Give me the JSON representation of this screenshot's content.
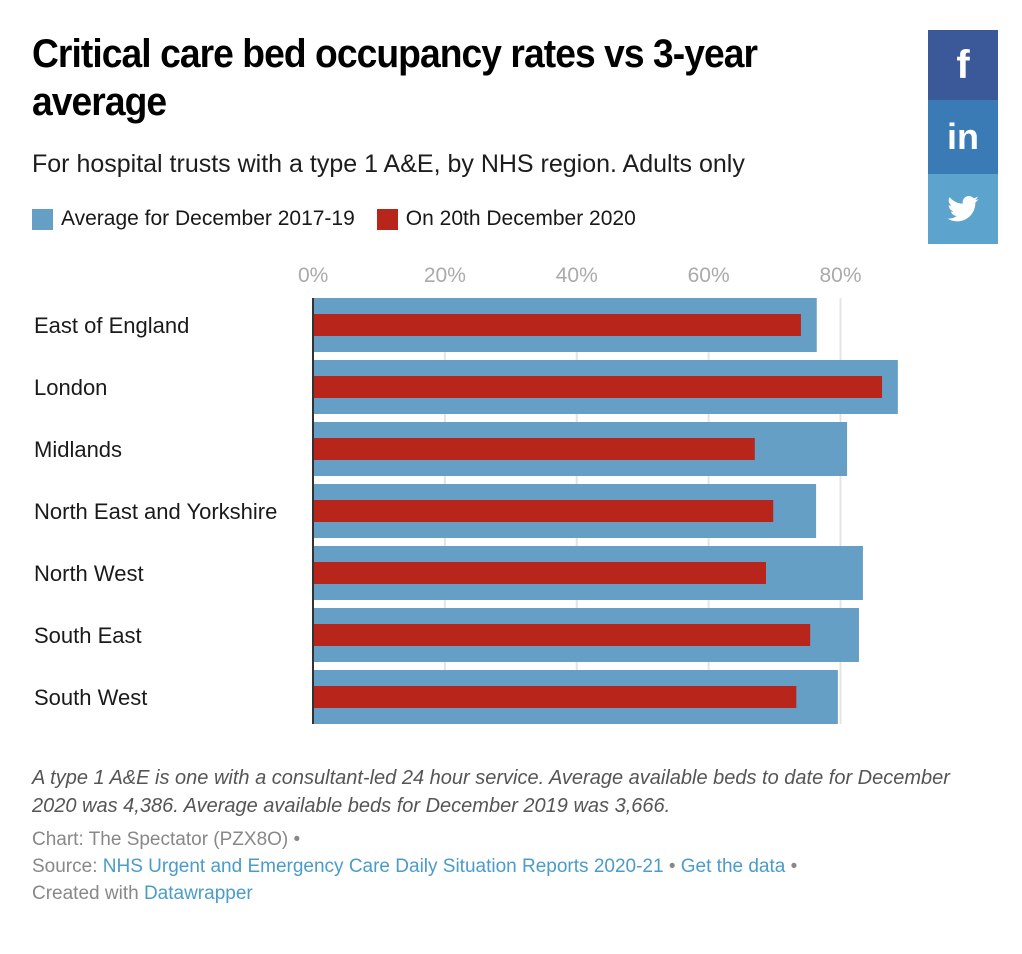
{
  "header": {
    "title": "Critical care bed occupancy rates vs 3-year average",
    "subtitle": "For hospital trusts with a type 1 A&E, by NHS region. Adults only"
  },
  "legend": [
    {
      "label": "Average for December 2017-19",
      "color": "#659fc6"
    },
    {
      "label": "On 20th December 2020",
      "color": "#b8261b"
    }
  ],
  "social": {
    "facebook": {
      "icon": "facebook-icon",
      "glyph": "f"
    },
    "linkedin": {
      "icon": "linkedin-icon",
      "glyph": "in"
    },
    "twitter": {
      "icon": "twitter-icon"
    }
  },
  "chart_data": {
    "type": "bar",
    "orientation": "horizontal",
    "title": "Critical care bed occupancy rates vs 3-year average",
    "subtitle": "For hospital trusts with a type 1 A&E, by NHS region. Adults only",
    "xlabel": "",
    "ylabel": "",
    "categories": [
      "East of England",
      "London",
      "Midlands",
      "North East and Yorkshire",
      "North West",
      "South East",
      "South West"
    ],
    "series": [
      {
        "name": "Average for December 2017-19",
        "color": "#659fc6",
        "values": [
          76.4,
          88.7,
          81.0,
          76.3,
          83.4,
          82.8,
          79.6
        ]
      },
      {
        "name": "On 20th December 2020",
        "color": "#b8261b",
        "values": [
          74.0,
          86.3,
          67.0,
          69.8,
          68.7,
          75.4,
          73.3
        ]
      }
    ],
    "xlim": [
      0,
      80
    ],
    "xticks": [
      0,
      20,
      40,
      60,
      80
    ],
    "xtick_labels": [
      "0%",
      "20%",
      "40%",
      "60%",
      "80%"
    ],
    "grid": true,
    "legend_position": "top-left"
  },
  "notes": "A type 1 A&E is one with a consultant-led 24 hour service. Average available beds to date for December 2020 was 4,386. Average available beds for December 2019 was 3,666.",
  "credits": {
    "chart_prefix": "Chart: The Spectator (PZX8O)",
    "separator": " • ",
    "source_prefix": "Source: ",
    "source_link": "NHS Urgent and Emergency Care Daily Situation Reports 2020-21",
    "get_data": "Get the data",
    "created_prefix": "Created with ",
    "created_link": "Datawrapper"
  }
}
